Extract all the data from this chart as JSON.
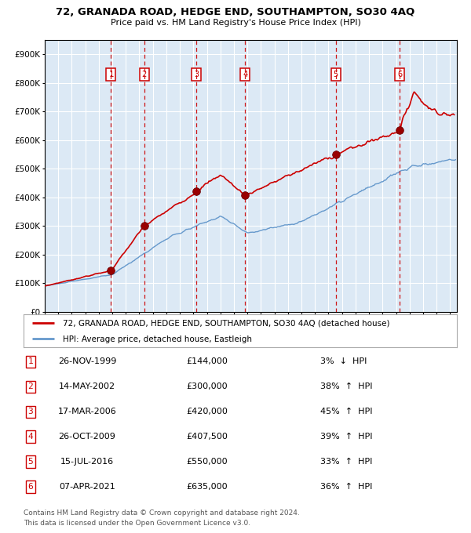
{
  "title": "72, GRANADA ROAD, HEDGE END, SOUTHAMPTON, SO30 4AQ",
  "subtitle": "Price paid vs. HM Land Registry's House Price Index (HPI)",
  "footer1": "Contains HM Land Registry data © Crown copyright and database right 2024.",
  "footer2": "This data is licensed under the Open Government Licence v3.0.",
  "legend_label_red": "72, GRANADA ROAD, HEDGE END, SOUTHAMPTON, SO30 4AQ (detached house)",
  "legend_label_blue": "HPI: Average price, detached house, Eastleigh",
  "background_color": "#ffffff",
  "plot_bg_color": "#dce9f5",
  "grid_color": "#ffffff",
  "red_color": "#cc0000",
  "blue_color": "#6699cc",
  "sale_color": "#cc0000",
  "dashed_color": "#cc0000",
  "sales": [
    {
      "num": 1,
      "date_label": "26-NOV-1999",
      "price": 144000,
      "pct": "3%",
      "dir": "↓",
      "x_year": 1999.9
    },
    {
      "num": 2,
      "date_label": "14-MAY-2002",
      "price": 300000,
      "pct": "38%",
      "dir": "↑",
      "x_year": 2002.37
    },
    {
      "num": 3,
      "date_label": "17-MAR-2006",
      "price": 420000,
      "pct": "45%",
      "dir": "↑",
      "x_year": 2006.21
    },
    {
      "num": 4,
      "date_label": "26-OCT-2009",
      "price": 407500,
      "pct": "39%",
      "dir": "↑",
      "x_year": 2009.82
    },
    {
      "num": 5,
      "date_label": "15-JUL-2016",
      "price": 550000,
      "pct": "33%",
      "dir": "↑",
      "x_year": 2016.54
    },
    {
      "num": 6,
      "date_label": "07-APR-2021",
      "price": 635000,
      "pct": "36%",
      "dir": "↑",
      "x_year": 2021.27
    }
  ],
  "xlim": [
    1995,
    2025.5
  ],
  "ylim": [
    0,
    950000
  ],
  "yticks": [
    0,
    100000,
    200000,
    300000,
    400000,
    500000,
    600000,
    700000,
    800000,
    900000
  ],
  "ytick_labels": [
    "£0",
    "£100K",
    "£200K",
    "£300K",
    "£400K",
    "£500K",
    "£600K",
    "£700K",
    "£800K",
    "£900K"
  ],
  "xticks": [
    1995,
    1996,
    1997,
    1998,
    1999,
    2000,
    2001,
    2002,
    2003,
    2004,
    2005,
    2006,
    2007,
    2008,
    2009,
    2010,
    2011,
    2012,
    2013,
    2014,
    2015,
    2016,
    2017,
    2018,
    2019,
    2020,
    2021,
    2022,
    2023,
    2024,
    2025
  ]
}
